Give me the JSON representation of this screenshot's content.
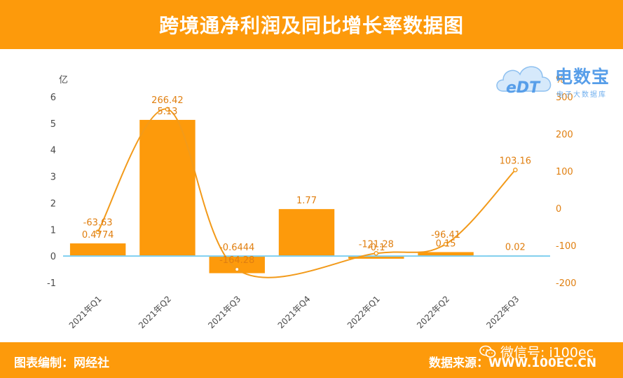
{
  "header": {
    "title": "跨境通净利润及同比增长率数据图"
  },
  "footer": {
    "compiled_by": "图表编制：网经社",
    "source": "数据来源：WWW.100EC.CN",
    "wechat": "微信号: i100ec"
  },
  "watermark": {
    "brand_cn": "电数宝",
    "brand_en": "eDT",
    "sub": "电子大数据库"
  },
  "colors": {
    "banner": "#fd9a0b",
    "bar": "#fd9a0b",
    "line": "#f29a1a",
    "zero_line": "#7fcff0",
    "label": "#e07f10",
    "axis_text": "#4a4a4a"
  },
  "chart_data": {
    "type": "bar",
    "categories": [
      "2021年Q1",
      "2021年Q2",
      "2021年Q3",
      "2021年Q4",
      "2022年Q1",
      "2022年Q2",
      "2022年Q3"
    ],
    "series": [
      {
        "axis": "left",
        "type": "bar",
        "values": [
          0.4774,
          5.13,
          -0.6444,
          1.77,
          -0.1,
          0.15,
          0.02
        ],
        "labels": [
          "0.4774",
          "5.13",
          "-0.6444",
          "1.77",
          "-0.1",
          "0.15",
          "0.02"
        ]
      },
      {
        "axis": "right",
        "type": "line",
        "values": [
          -63.63,
          266.42,
          -164.28,
          null,
          -121.28,
          -96.41,
          103.16
        ],
        "labels": [
          "-63.63",
          "266.42",
          "-164.28",
          "",
          "-121.28",
          "-96.41",
          "103.16"
        ]
      }
    ],
    "yleft": {
      "unit": "亿",
      "min": -1,
      "max": 6,
      "ticks": [
        -1,
        0,
        1,
        2,
        3,
        4,
        5,
        6
      ]
    },
    "yright": {
      "unit": "%",
      "min": -200,
      "max": 300,
      "ticks": [
        -200,
        -100,
        0,
        100,
        200,
        300
      ]
    },
    "grid": false,
    "legend": "none"
  }
}
